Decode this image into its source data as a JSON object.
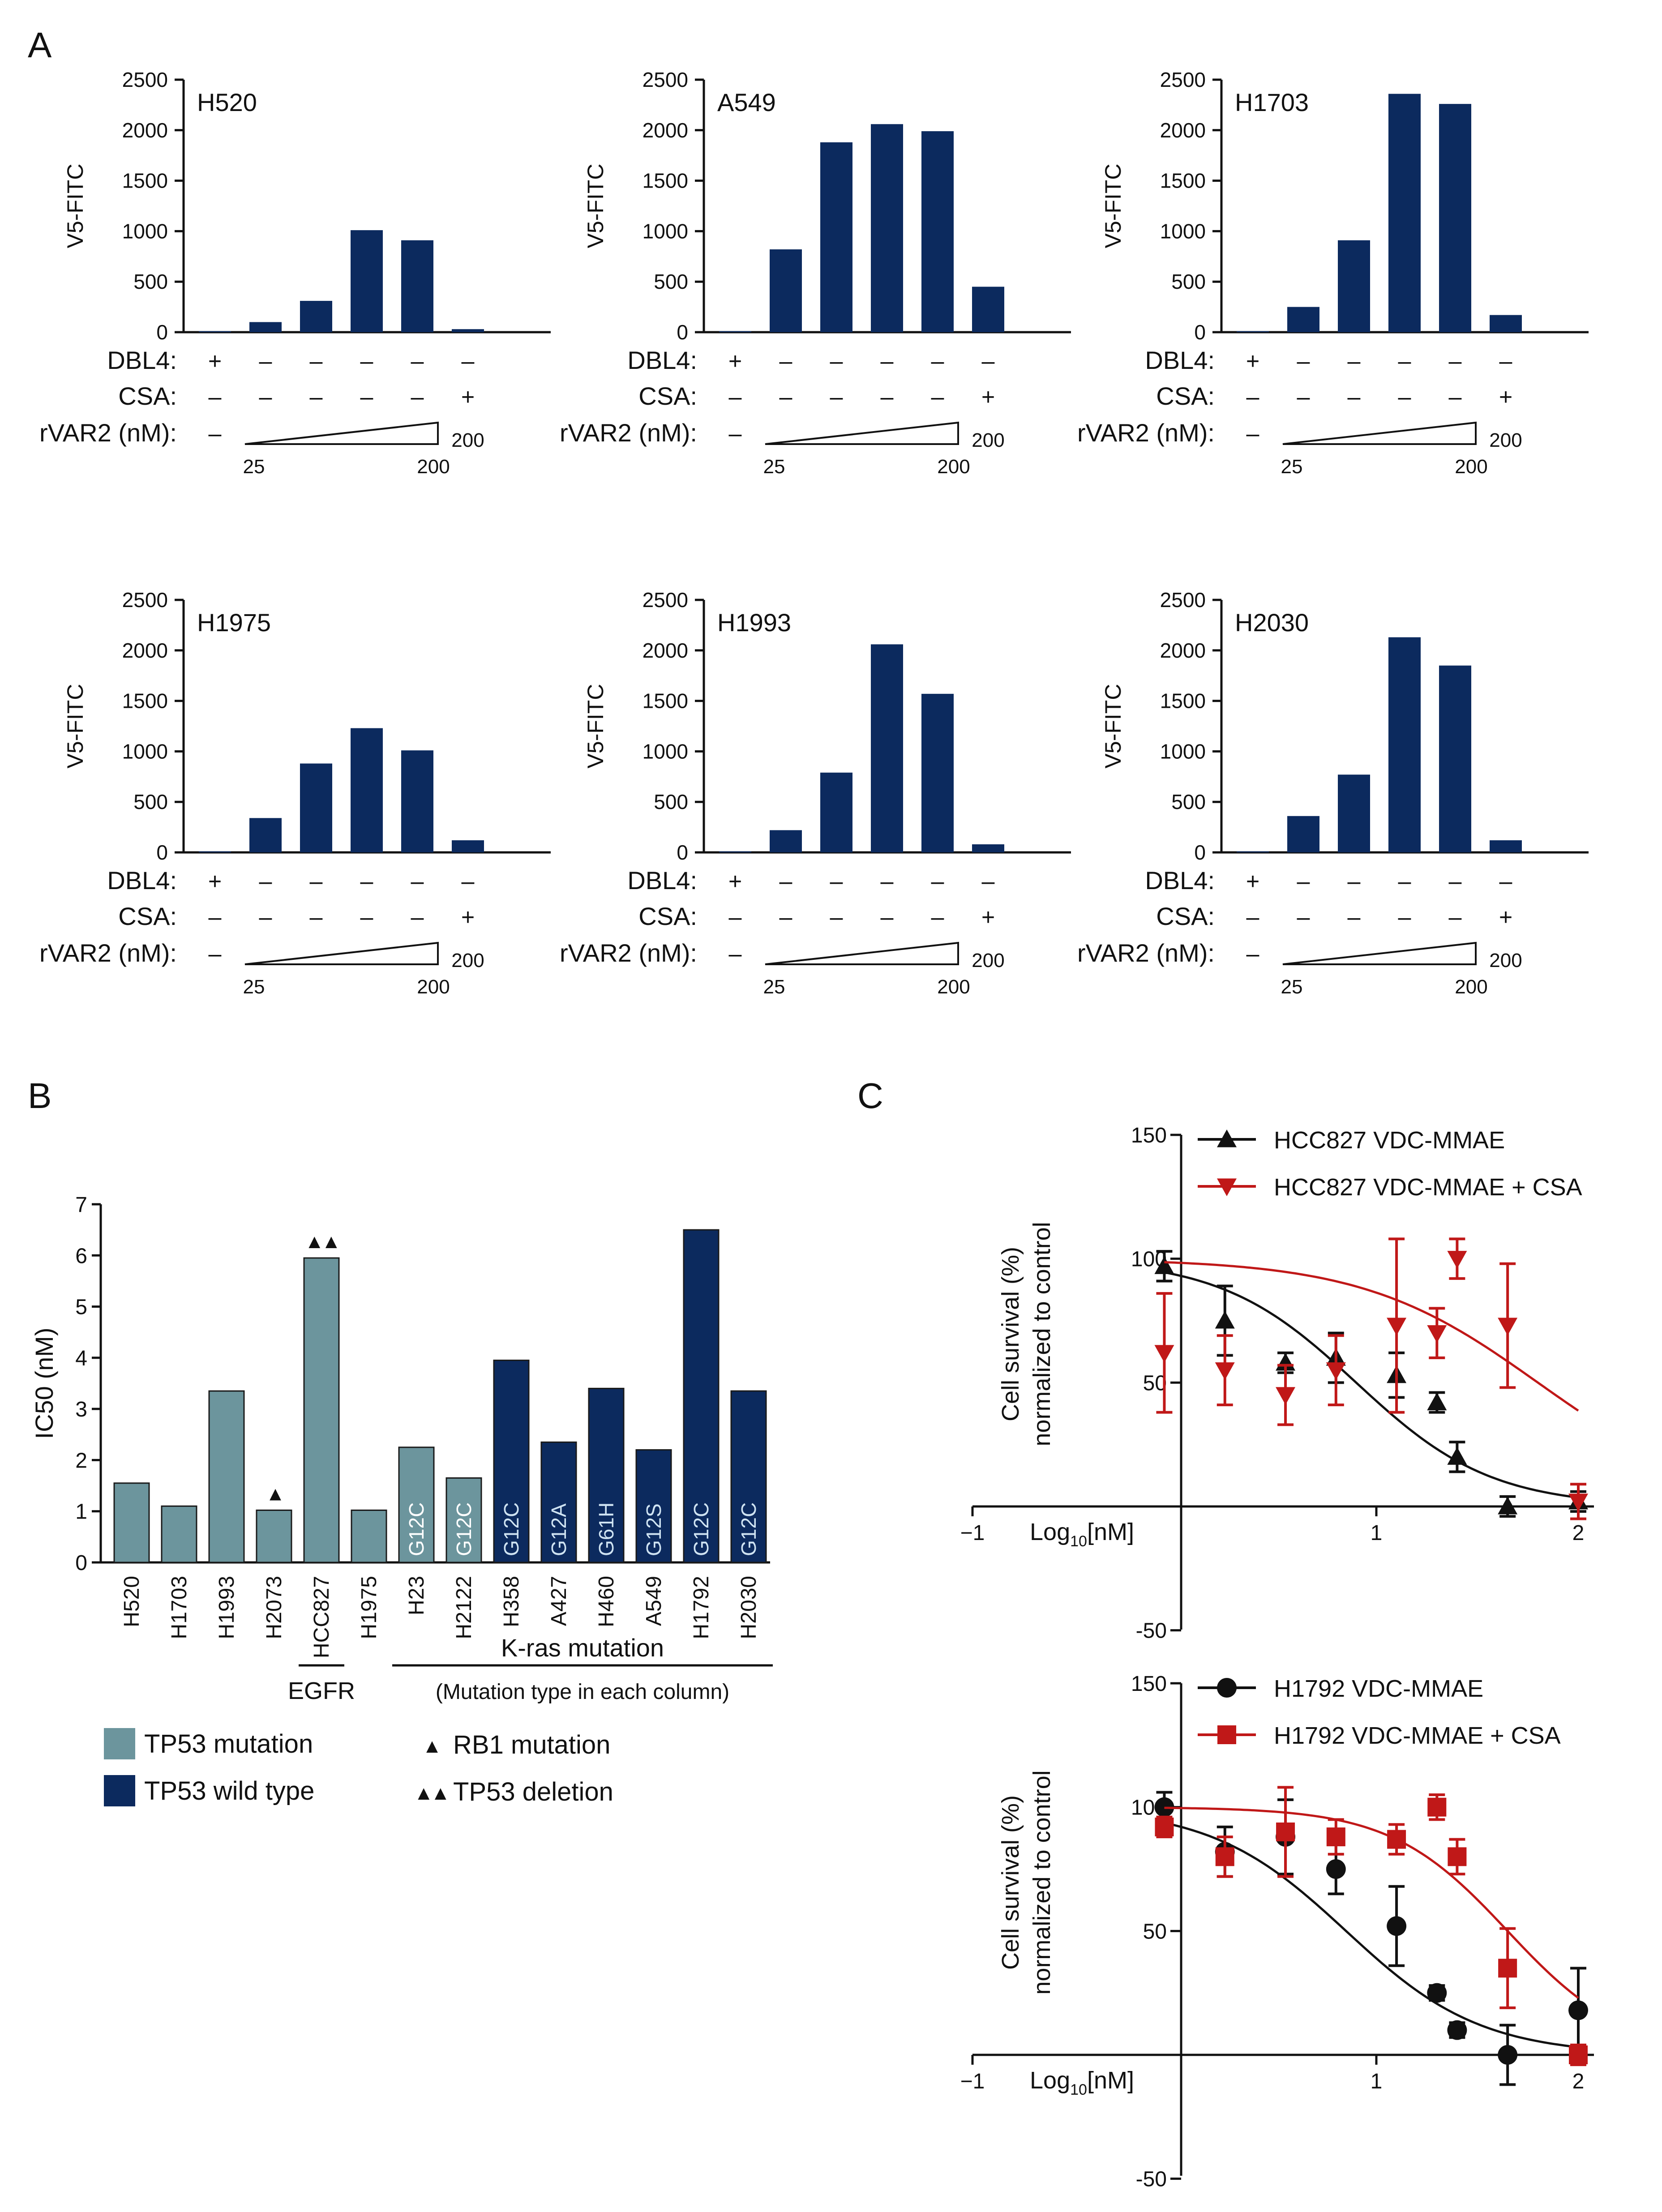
{
  "figure": {
    "panel_labels": [
      "A",
      "B",
      "C"
    ],
    "colors": {
      "navy": "#0c2a5e",
      "teal": "#6c959d",
      "red": "#c01818",
      "black": "#111111",
      "axis": "#111111",
      "bar_text_navy": "#cfe3f2",
      "bar_text_teal": "#ffffff"
    },
    "panel_a": {
      "condition_labels": [
        "DBL4:",
        "CSA:",
        "rVAR2 (nM):"
      ],
      "dbl4_marks": [
        "+",
        "–",
        "–",
        "–",
        "–",
        "–"
      ],
      "csa_marks": [
        "–",
        "–",
        "–",
        "–",
        "–",
        "+"
      ],
      "rvar2_marks": [
        "–",
        "",
        "",
        "",
        "",
        "200"
      ],
      "ramp_low": "25",
      "ramp_high": "200"
    },
    "panel_b": {
      "group_labels": [
        "EGFR",
        "K-ras mutation",
        "(Mutation type in each column)"
      ],
      "legend": [
        {
          "label": "TP53 mutation",
          "color": "#6c959d"
        },
        {
          "label": "TP53 wild type",
          "color": "#0c2a5e"
        }
      ],
      "symbol_legend": [
        {
          "symbol": "▲",
          "label": "RB1 mutation"
        },
        {
          "symbol": "▲▲",
          "label": "TP53 deletion"
        }
      ]
    },
    "panel_c": {
      "x_axis_label": "Log",
      "x_axis_sub": "10",
      "x_axis_unit": "[nM]",
      "y_label_line1": "Cell survival (%)",
      "y_label_line2": "normalized to control"
    }
  },
  "chart_data": [
    {
      "type": "bar",
      "cell_line": "H520",
      "ylabel": "V5-FITC",
      "ylim": [
        0,
        2500
      ],
      "yticks": [
        0,
        500,
        1000,
        1500,
        2000,
        2500
      ],
      "values": [
        10,
        100,
        310,
        1010,
        910,
        30
      ],
      "color": "#0c2a5e"
    },
    {
      "type": "bar",
      "cell_line": "A549",
      "ylabel": "V5-FITC",
      "ylim": [
        0,
        2500
      ],
      "yticks": [
        0,
        500,
        1000,
        1500,
        2000,
        2500
      ],
      "values": [
        10,
        820,
        1880,
        2060,
        1990,
        450
      ],
      "color": "#0c2a5e"
    },
    {
      "type": "bar",
      "cell_line": "H1703",
      "ylabel": "V5-FITC",
      "ylim": [
        0,
        2500
      ],
      "yticks": [
        0,
        500,
        1000,
        1500,
        2000,
        2500
      ],
      "values": [
        10,
        250,
        910,
        2360,
        2260,
        170
      ],
      "color": "#0c2a5e"
    },
    {
      "type": "bar",
      "cell_line": "H1975",
      "ylabel": "V5-FITC",
      "ylim": [
        0,
        2500
      ],
      "yticks": [
        0,
        500,
        1000,
        1500,
        2000,
        2500
      ],
      "values": [
        10,
        340,
        880,
        1230,
        1010,
        120
      ],
      "color": "#0c2a5e"
    },
    {
      "type": "bar",
      "cell_line": "H1993",
      "ylabel": "V5-FITC",
      "ylim": [
        0,
        2500
      ],
      "yticks": [
        0,
        500,
        1000,
        1500,
        2000,
        2500
      ],
      "values": [
        10,
        220,
        790,
        2060,
        1570,
        80
      ],
      "color": "#0c2a5e"
    },
    {
      "type": "bar",
      "cell_line": "H2030",
      "ylabel": "V5-FITC",
      "ylim": [
        0,
        2500
      ],
      "yticks": [
        0,
        500,
        1000,
        1500,
        2000,
        2500
      ],
      "values": [
        10,
        360,
        770,
        2130,
        1850,
        120
      ],
      "color": "#0c2a5e"
    },
    {
      "type": "bar",
      "ylabel": "IC50 (nM)",
      "ylim": [
        0,
        7
      ],
      "yticks": [
        0,
        1,
        2,
        3,
        4,
        5,
        6,
        7
      ],
      "categories": [
        "H520",
        "H1703",
        "H1993",
        "H2073",
        "HCC827",
        "H1975",
        "H23",
        "H2122",
        "H358",
        "A427",
        "H460",
        "A549",
        "H1792",
        "H2030"
      ],
      "values": [
        1.55,
        1.1,
        3.35,
        1.02,
        5.95,
        1.02,
        2.25,
        1.65,
        3.95,
        2.35,
        3.4,
        2.2,
        6.5,
        3.35
      ],
      "tp53_status": [
        "mutation",
        "mutation",
        "mutation",
        "mutation",
        "mutation",
        "mutation",
        "mutation",
        "mutation",
        "wild type",
        "wild type",
        "wild type",
        "wild type",
        "wild type",
        "wild type"
      ],
      "mutation_type": [
        "",
        "",
        "",
        "",
        "",
        "",
        "G12C",
        "G12C",
        "G12C",
        "G12A",
        "G61H",
        "G12S",
        "G12C",
        "G12C"
      ],
      "markers": [
        "",
        "",
        "",
        "▲",
        "▲▲",
        "",
        "",
        "",
        "",
        "",
        "",
        "",
        "",
        ""
      ]
    },
    {
      "type": "scatter",
      "xlabel": "Log10[nM]",
      "ylabel": "Cell survival (%) normalized to control",
      "xlim": [
        -1,
        2.1
      ],
      "ylim": [
        -50,
        150
      ],
      "xticks": [
        -1,
        1,
        2
      ],
      "yticks": [
        150,
        100,
        50,
        -50
      ],
      "series": [
        {
          "name": "HCC827 VDC-MMAE",
          "color": "#111111",
          "marker": "triangle-up",
          "x": [
            -0.05,
            0.25,
            0.55,
            0.8,
            1.1,
            1.3,
            1.4,
            1.65,
            2.0
          ],
          "y": [
            97,
            75,
            58,
            60,
            53,
            42,
            20,
            0,
            2
          ],
          "err": [
            6,
            14,
            4,
            10,
            9,
            4,
            6,
            4,
            4
          ],
          "fit": {
            "top": 100,
            "bottom": 0,
            "log_ec50": 0.9,
            "hill": 1.3
          }
        },
        {
          "name": "HCC827 VDC-MMAE + CSA",
          "color": "#c01818",
          "marker": "triangle-down",
          "x": [
            -0.05,
            0.25,
            0.55,
            0.8,
            1.1,
            1.3,
            1.4,
            1.65,
            2.0
          ],
          "y": [
            62,
            55,
            45,
            55,
            73,
            70,
            100,
            73,
            2
          ],
          "err": [
            24,
            14,
            12,
            14,
            35,
            10,
            8,
            25,
            7
          ],
          "fit": {
            "top": 100,
            "bottom": 0,
            "log_ec50": 1.8,
            "hill": 1.0
          }
        }
      ]
    },
    {
      "type": "scatter",
      "xlabel": "Log10[nM]",
      "ylabel": "Cell survival (%) normalized to control",
      "xlim": [
        -1,
        2.1
      ],
      "ylim": [
        -50,
        150
      ],
      "xticks": [
        -1,
        1,
        2
      ],
      "yticks": [
        150,
        100,
        50,
        -50
      ],
      "series": [
        {
          "name": "H1792 VDC-MMAE",
          "color": "#111111",
          "marker": "circle",
          "x": [
            -0.05,
            0.25,
            0.55,
            0.8,
            1.1,
            1.3,
            1.4,
            1.65,
            2.0
          ],
          "y": [
            100,
            82,
            88,
            75,
            52,
            25,
            10,
            0,
            18
          ],
          "err": [
            6,
            10,
            15,
            10,
            16,
            3,
            3,
            12,
            17
          ],
          "fit": {
            "top": 100,
            "bottom": 0,
            "log_ec50": 0.85,
            "hill": 1.3
          }
        },
        {
          "name": "H1792 VDC-MMAE + CSA",
          "color": "#c01818",
          "marker": "square",
          "x": [
            -0.05,
            0.25,
            0.55,
            0.8,
            1.1,
            1.3,
            1.4,
            1.65,
            2.0
          ],
          "y": [
            92,
            80,
            90,
            88,
            87,
            100,
            80,
            35,
            0
          ],
          "err": [
            4,
            8,
            18,
            7,
            6,
            5,
            7,
            16,
            4
          ],
          "fit": {
            "top": 100,
            "bottom": 0,
            "log_ec50": 1.65,
            "hill": 1.5
          }
        }
      ]
    }
  ]
}
